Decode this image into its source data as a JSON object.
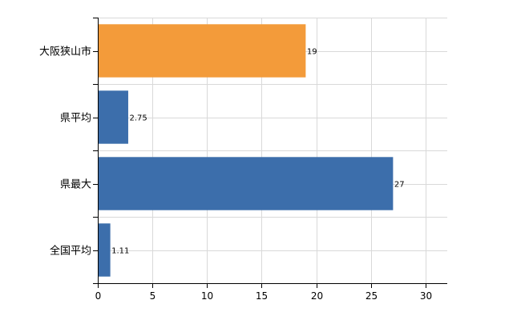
{
  "chart_data": {
    "type": "bar",
    "orientation": "horizontal",
    "categories": [
      "大阪狭山市",
      "県平均",
      "県最大",
      "全国平均"
    ],
    "values": [
      19,
      2.75,
      27,
      1.11
    ],
    "data_labels": [
      "19",
      "2.75",
      "27",
      "1.11"
    ],
    "bar_colors": [
      "#f39b3a",
      "#3c6eab",
      "#3c6eab",
      "#3c6eab"
    ],
    "xlim": [
      0,
      32
    ],
    "x_ticks": [
      0,
      5,
      10,
      15,
      20,
      25,
      30
    ],
    "x_tick_labels": [
      "0",
      "5",
      "10",
      "15",
      "20",
      "25",
      "30"
    ],
    "grid": true,
    "legend": "none",
    "title": "",
    "xlabel": "",
    "ylabel": ""
  }
}
